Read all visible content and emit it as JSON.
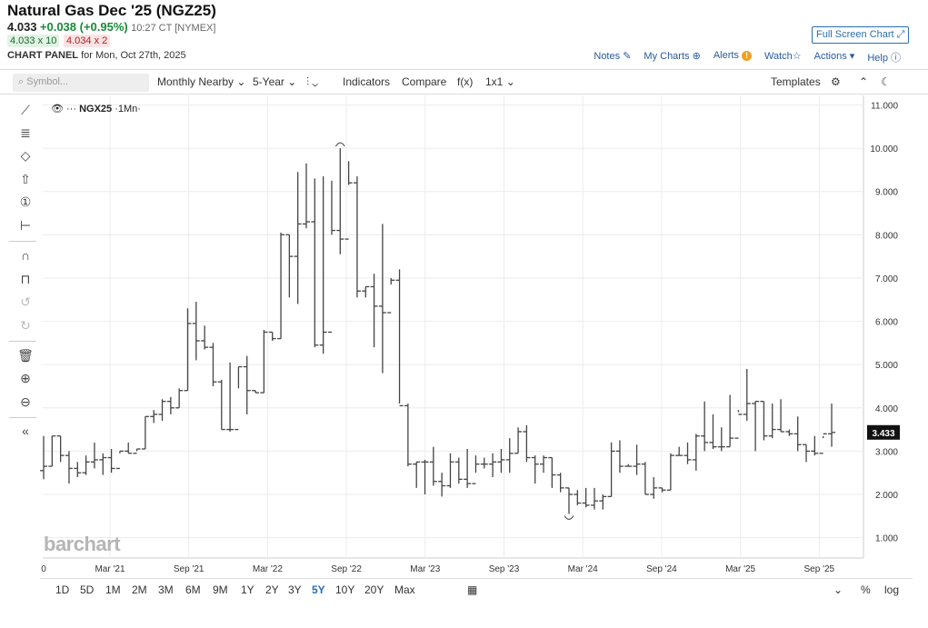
{
  "header": {
    "title": "Natural Gas Dec '25 (NGZ25)",
    "last": "4.033",
    "change": "+0.038 (+0.95%)",
    "time": "10:27 CT [NYMEX]",
    "bid": "4.033 x 10",
    "ask": "4.034 x 2",
    "panel_label": "CHART PANEL",
    "panel_date": "for Mon, Oct 27th, 2025",
    "full_screen": "Full Screen Chart"
  },
  "links": {
    "notes": "Notes",
    "my_charts": "My Charts",
    "alerts": "Alerts",
    "watch": "Watch",
    "actions": "Actions",
    "help": "Help"
  },
  "toolbar": {
    "search_placeholder": "Symbol...",
    "monthly": "Monthly Nearby",
    "period": "5-Year",
    "indicators": "Indicators",
    "compare": "Compare",
    "fx": "f(x)",
    "layout": "1x1",
    "templates": "Templates"
  },
  "legend": {
    "symbol": "NGX25",
    "interval": "·1Mn·"
  },
  "watermark": "barchart",
  "ranges": [
    "1D",
    "5D",
    "1M",
    "2M",
    "3M",
    "6M",
    "9M",
    "1Y",
    "2Y",
    "3Y",
    "5Y",
    "10Y",
    "20Y",
    "Max"
  ],
  "active_range": "5Y",
  "bottom_right": {
    "pct": "%",
    "log": "log"
  },
  "chart_data": {
    "type": "ohlc",
    "y_ticks": [
      "1.000",
      "2.000",
      "3.000",
      "4.000",
      "5.000",
      "6.000",
      "7.000",
      "8.000",
      "9.000",
      "10.000",
      "11.000"
    ],
    "ylim": [
      0.8,
      11.1
    ],
    "x_labels": [
      "0",
      "Mar '21",
      "Sep '21",
      "Mar '22",
      "Sep '22",
      "Mar '23",
      "Sep '23",
      "Mar '24",
      "Sep '24",
      "Mar '25",
      "Sep '25"
    ],
    "last_value": "3.433",
    "bars": [
      [
        2.55,
        3.35,
        2.35,
        2.65
      ],
      [
        2.65,
        3.35,
        2.65,
        3.35
      ],
      [
        3.35,
        3.35,
        2.75,
        2.9
      ],
      [
        2.9,
        3.0,
        2.25,
        2.6
      ],
      [
        2.6,
        2.75,
        2.4,
        2.5
      ],
      [
        2.5,
        2.9,
        2.45,
        2.75
      ],
      [
        2.75,
        3.2,
        2.6,
        2.8
      ],
      [
        2.8,
        2.95,
        2.45,
        2.85
      ],
      [
        2.85,
        3.05,
        2.5,
        2.6
      ],
      [
        2.6,
        3.0,
        2.95,
        3.0
      ],
      [
        3.0,
        3.2,
        2.95,
        2.95
      ],
      [
        2.95,
        3.05,
        3.0,
        3.05
      ],
      [
        3.05,
        3.8,
        3.05,
        3.8
      ],
      [
        3.8,
        3.95,
        3.65,
        3.85
      ],
      [
        3.85,
        4.2,
        3.7,
        4.15
      ],
      [
        4.15,
        4.25,
        3.85,
        4.0
      ],
      [
        4.0,
        4.45,
        4.0,
        4.4
      ],
      [
        4.4,
        6.3,
        4.4,
        5.95
      ],
      [
        5.95,
        6.45,
        5.1,
        5.55
      ],
      [
        5.55,
        5.9,
        5.35,
        5.4
      ],
      [
        5.4,
        5.5,
        4.5,
        4.6
      ],
      [
        4.6,
        4.65,
        3.5,
        3.5
      ],
      [
        3.5,
        5.05,
        3.45,
        3.5
      ],
      [
        3.5,
        4.95,
        4.45,
        4.95
      ],
      [
        4.95,
        5.2,
        3.85,
        4.4
      ],
      [
        4.4,
        4.4,
        4.35,
        4.35
      ],
      [
        4.35,
        5.8,
        4.35,
        5.75
      ],
      [
        5.75,
        5.75,
        5.55,
        5.6
      ],
      [
        5.6,
        8.05,
        5.6,
        8.0
      ],
      [
        8.0,
        8.0,
        6.55,
        7.5
      ],
      [
        7.5,
        9.45,
        6.4,
        8.25
      ],
      [
        8.25,
        9.65,
        8.15,
        8.3
      ],
      [
        8.3,
        9.3,
        5.4,
        5.45
      ],
      [
        5.45,
        9.35,
        5.25,
        5.75
      ],
      [
        5.75,
        9.25,
        8.0,
        8.1
      ],
      [
        8.1,
        10.0,
        7.55,
        7.9
      ],
      [
        7.9,
        9.7,
        9.15,
        9.2
      ],
      [
        9.2,
        9.35,
        6.55,
        6.7
      ],
      [
        6.7,
        6.8,
        6.55,
        6.8
      ],
      [
        6.8,
        7.1,
        5.4,
        6.35
      ],
      [
        6.35,
        8.25,
        4.8,
        6.2
      ],
      [
        6.2,
        7.0,
        6.85,
        6.95
      ],
      [
        6.95,
        7.2,
        4.1,
        4.05
      ],
      [
        4.05,
        4.1,
        2.65,
        2.7
      ],
      [
        2.7,
        2.75,
        2.15,
        2.75
      ],
      [
        2.75,
        2.8,
        2.0,
        2.75
      ],
      [
        2.75,
        3.1,
        2.2,
        2.3
      ],
      [
        2.3,
        2.5,
        1.95,
        2.2
      ],
      [
        2.2,
        2.95,
        2.15,
        2.75
      ],
      [
        2.75,
        2.85,
        2.25,
        2.35
      ],
      [
        2.35,
        3.05,
        2.15,
        2.25
      ],
      [
        2.25,
        2.9,
        2.5,
        2.7
      ],
      [
        2.7,
        2.85,
        2.6,
        2.7
      ],
      [
        2.7,
        2.95,
        2.4,
        2.75
      ],
      [
        2.75,
        3.05,
        2.5,
        2.8
      ],
      [
        2.8,
        3.3,
        2.5,
        2.95
      ],
      [
        2.95,
        3.55,
        2.95,
        3.45
      ],
      [
        3.45,
        3.6,
        2.75,
        2.85
      ],
      [
        2.85,
        2.9,
        2.25,
        2.7
      ],
      [
        2.7,
        2.9,
        2.5,
        2.85
      ],
      [
        2.85,
        2.85,
        2.15,
        2.45
      ],
      [
        2.45,
        2.5,
        2.05,
        2.15
      ],
      [
        2.15,
        2.15,
        1.55,
        2.0
      ],
      [
        2.0,
        2.1,
        1.75,
        1.8
      ],
      [
        1.8,
        2.15,
        1.7,
        1.75
      ],
      [
        1.75,
        2.15,
        1.65,
        1.85
      ],
      [
        1.85,
        2.0,
        1.65,
        1.95
      ],
      [
        1.95,
        3.2,
        1.95,
        3.0
      ],
      [
        3.0,
        3.25,
        2.5,
        2.65
      ],
      [
        2.65,
        2.7,
        2.65,
        2.65
      ],
      [
        2.65,
        3.15,
        2.45,
        2.7
      ],
      [
        2.7,
        2.75,
        2.0,
        2.0
      ],
      [
        2.0,
        2.4,
        1.9,
        2.15
      ],
      [
        2.15,
        2.15,
        2.05,
        2.1
      ],
      [
        2.1,
        2.95,
        2.1,
        2.9
      ],
      [
        2.9,
        3.1,
        2.9,
        2.9
      ],
      [
        2.9,
        3.2,
        2.7,
        2.8
      ],
      [
        2.8,
        3.4,
        2.55,
        3.35
      ],
      [
        3.35,
        4.15,
        3.0,
        3.2
      ],
      [
        3.2,
        3.85,
        3.05,
        3.1
      ],
      [
        3.1,
        3.55,
        3.0,
        3.1
      ],
      [
        3.1,
        4.3,
        3.1,
        3.3
      ],
      [
        3.3,
        3.95,
        3.9,
        3.85
      ],
      [
        3.85,
        4.9,
        3.7,
        4.1
      ],
      [
        4.1,
        4.15,
        3.0,
        4.15
      ],
      [
        4.15,
        4.15,
        3.25,
        3.35
      ],
      [
        3.35,
        4.1,
        3.3,
        3.5
      ],
      [
        3.5,
        4.2,
        3.45,
        3.45
      ],
      [
        3.45,
        3.5,
        3.35,
        3.4
      ],
      [
        3.4,
        3.8,
        3.0,
        3.15
      ],
      [
        3.15,
        3.15,
        2.75,
        3.0
      ],
      [
        3.0,
        3.35,
        2.9,
        2.95
      ],
      [
        2.95,
        3.35,
        3.3,
        3.4
      ],
      [
        3.4,
        4.1,
        3.1,
        3.433
      ]
    ]
  }
}
